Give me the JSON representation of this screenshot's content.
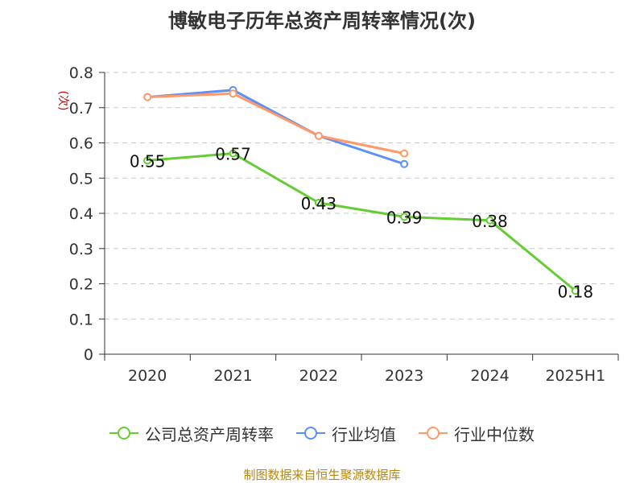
{
  "title": "博敏电子历年总资产周转率情况(次)",
  "source_note": "制图数据来自恒生聚源数据库",
  "colors": {
    "company": "#66cc33",
    "industry_avg": "#5b8ff9",
    "industry_median": "#ff9966",
    "grid": "#c8c8c8",
    "axis": "#333333"
  },
  "chart_data": {
    "type": "line",
    "title": "博敏电子历年总资产周转率情况(次)",
    "ylabel": "(次)",
    "xlabel": "",
    "categories": [
      "2020",
      "2021",
      "2022",
      "2023",
      "2024",
      "2025H1"
    ],
    "ylim": [
      0,
      0.8
    ],
    "yticks": [
      0,
      0.1,
      0.2,
      0.3,
      0.4,
      0.5,
      0.6,
      0.7,
      0.8
    ],
    "ytick_labels": [
      "0",
      "0.1",
      "0.2",
      "0.3",
      "0.4",
      "0.5",
      "0.6",
      "0.7",
      "0.8"
    ],
    "grid": "horizontal dashed",
    "legend_position": "bottom",
    "series": [
      {
        "name": "公司总资产周转率",
        "color": "#66cc33",
        "show_labels": true,
        "values": [
          0.55,
          0.57,
          0.43,
          0.39,
          0.38,
          0.18
        ],
        "labels": [
          "0.55",
          "0.57",
          "0.43",
          "0.39",
          "0.38",
          "0.18"
        ]
      },
      {
        "name": "行业均值",
        "color": "#5b8ff9",
        "show_labels": false,
        "values": [
          0.73,
          0.75,
          0.62,
          0.54,
          null,
          null
        ]
      },
      {
        "name": "行业中位数",
        "color": "#ff9966",
        "show_labels": false,
        "values": [
          0.73,
          0.74,
          0.62,
          0.57,
          null,
          null
        ]
      }
    ]
  }
}
